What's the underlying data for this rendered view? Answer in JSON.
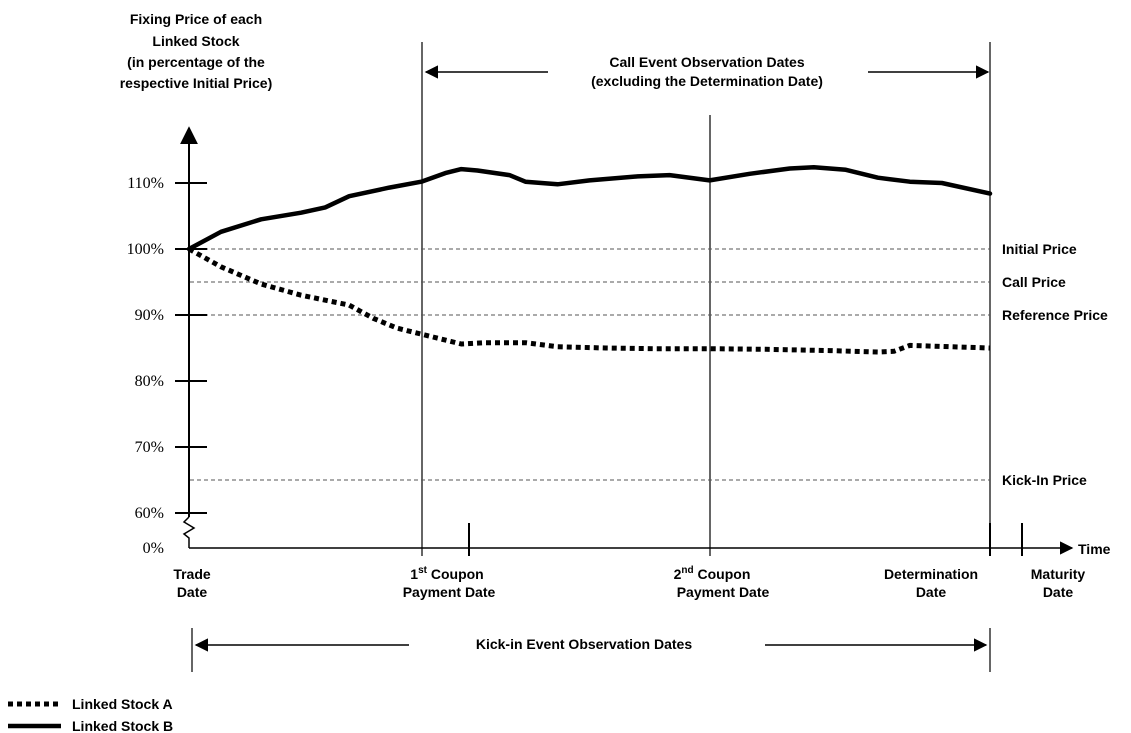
{
  "chart_data": {
    "type": "line",
    "y_title": [
      "Fixing Price of each",
      "Linked Stock",
      "(in percentage of the",
      "respective Initial Price)"
    ],
    "x_axis_label": "Time",
    "y_ticks": [
      {
        "value": 110,
        "label": "110%"
      },
      {
        "value": 100,
        "label": "100%"
      },
      {
        "value": 90,
        "label": "90%"
      },
      {
        "value": 80,
        "label": "80%"
      },
      {
        "value": 70,
        "label": "70%"
      },
      {
        "value": 60,
        "label": "60%"
      },
      {
        "value": 0,
        "label": "0%"
      }
    ],
    "axis_break_after": 60,
    "reference_lines": [
      {
        "label": "Initial Price",
        "value": 100
      },
      {
        "label": "Call Price",
        "value": 95
      },
      {
        "label": "Reference Price",
        "value": 90
      },
      {
        "label": "Kick-In Price",
        "value": 65
      }
    ],
    "time_points": {
      "trade_date": 0,
      "first_coupon_observation": 0.29,
      "first_coupon_payment": 0.35,
      "second_coupon_payment": 0.65,
      "determination_date": 1.0,
      "maturity_date": 1.04
    },
    "x_labels": {
      "trade_date": [
        "Trade",
        "Date"
      ],
      "first_coupon": {
        "num": "1",
        "sup": "st",
        "rest": " Coupon",
        "line2": "Payment Date"
      },
      "second_coupon": {
        "num": "2",
        "sup": "nd",
        "rest": " Coupon",
        "line2": "Payment Date"
      },
      "determination_date": [
        "Determination",
        "Date"
      ],
      "maturity_date": [
        "Maturity",
        "Date"
      ]
    },
    "call_event_label": [
      "Call Event Observation Dates",
      "(excluding the Determination Date)"
    ],
    "kick_in_event_label": "Kick-in Event Observation Dates",
    "series": [
      {
        "name": "Linked Stock A",
        "style": "dotted",
        "points": [
          [
            0,
            100
          ],
          [
            0.04,
            97.3
          ],
          [
            0.09,
            94.7
          ],
          [
            0.14,
            93.0
          ],
          [
            0.2,
            91.5
          ],
          [
            0.23,
            89.5
          ],
          [
            0.26,
            88.0
          ],
          [
            0.31,
            86.5
          ],
          [
            0.34,
            85.6
          ],
          [
            0.37,
            85.8
          ],
          [
            0.42,
            85.8
          ],
          [
            0.46,
            85.2
          ],
          [
            0.52,
            85.0
          ],
          [
            0.58,
            84.9
          ],
          [
            0.65,
            84.9
          ],
          [
            0.72,
            84.8
          ],
          [
            0.8,
            84.6
          ],
          [
            0.86,
            84.4
          ],
          [
            0.88,
            84.5
          ],
          [
            0.9,
            85.4
          ],
          [
            0.95,
            85.2
          ],
          [
            1.0,
            85.0
          ]
        ]
      },
      {
        "name": "Linked Stock B",
        "style": "solid",
        "points": [
          [
            0,
            100
          ],
          [
            0.04,
            102.6
          ],
          [
            0.09,
            104.5
          ],
          [
            0.14,
            105.5
          ],
          [
            0.17,
            106.3
          ],
          [
            0.2,
            108.0
          ],
          [
            0.25,
            109.3
          ],
          [
            0.29,
            110.2
          ],
          [
            0.32,
            111.5
          ],
          [
            0.34,
            112.1
          ],
          [
            0.36,
            111.9
          ],
          [
            0.4,
            111.2
          ],
          [
            0.42,
            110.2
          ],
          [
            0.46,
            109.8
          ],
          [
            0.5,
            110.4
          ],
          [
            0.56,
            111.0
          ],
          [
            0.6,
            111.2
          ],
          [
            0.65,
            110.4
          ],
          [
            0.7,
            111.4
          ],
          [
            0.75,
            112.2
          ],
          [
            0.78,
            112.4
          ],
          [
            0.82,
            112.0
          ],
          [
            0.86,
            110.8
          ],
          [
            0.9,
            110.2
          ],
          [
            0.94,
            110.0
          ],
          [
            1.0,
            108.4
          ]
        ]
      }
    ]
  },
  "legend": [
    {
      "name": "Linked Stock A",
      "style": "dotted"
    },
    {
      "name": "Linked Stock B",
      "style": "solid"
    }
  ]
}
